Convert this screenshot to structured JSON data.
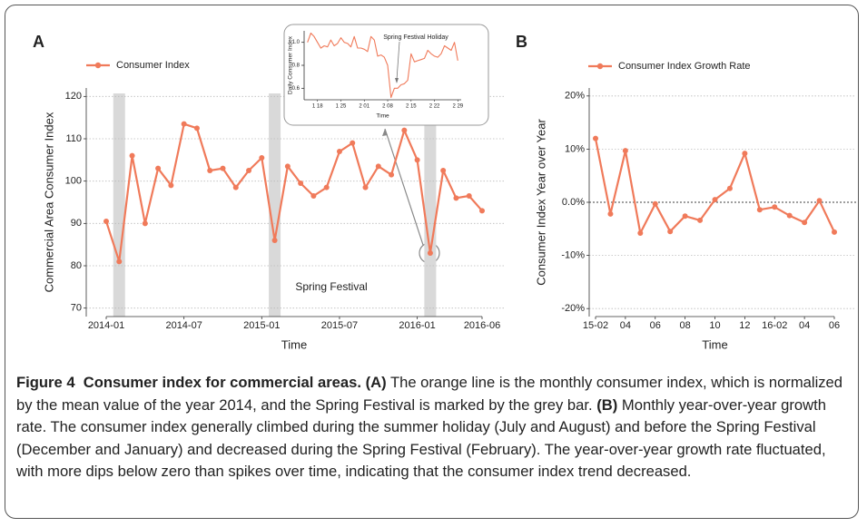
{
  "chart_data": [
    {
      "type": "line",
      "panel": "A",
      "ylabel": "Commercial Area Consumer Index",
      "xlabel": "Time",
      "annotation": "Spring Festival",
      "categories": [
        "2014-01",
        null,
        null,
        null,
        null,
        null,
        "2014-07",
        null,
        null,
        null,
        null,
        null,
        "2015-01",
        null,
        null,
        null,
        null,
        null,
        "2015-07",
        null,
        null,
        null,
        null,
        null,
        "2016-01",
        null,
        null,
        null,
        null,
        "2016-06"
      ],
      "series": [
        {
          "name": "Consumer Index",
          "color": "#f07a5a",
          "values": [
            90.5,
            81,
            106,
            90,
            103,
            99,
            113.5,
            112.5,
            102.5,
            103,
            98.5,
            102.5,
            105.5,
            86,
            103.5,
            99.5,
            96.5,
            98.5,
            107,
            109,
            98.5,
            103.5,
            101.5,
            112,
            105,
            83,
            102.5,
            96,
            96.5,
            93
          ]
        }
      ],
      "shaded_indices": [
        1,
        13,
        25
      ],
      "ylim": [
        68,
        122
      ],
      "yticks": [
        70,
        80,
        90,
        100,
        110,
        120
      ],
      "grid": true,
      "legend": "top-left",
      "markers": true
    },
    {
      "type": "line",
      "panel": "B",
      "ylabel": "Consumer Index Year over Year",
      "xlabel": "Time",
      "categories": [
        "15-02",
        null,
        "04",
        null,
        "06",
        null,
        "08",
        null,
        "10",
        null,
        "12",
        null,
        "16-02",
        null,
        "04",
        null,
        "06"
      ],
      "series": [
        {
          "name": "Consumer Index Growth Rate",
          "color": "#f07a5a",
          "values": [
            12.0,
            -2.2,
            9.7,
            -5.8,
            -0.3,
            -5.5,
            -2.6,
            -3.4,
            0.5,
            2.6,
            9.2,
            -1.4,
            -0.9,
            -2.5,
            -3.8,
            0.3,
            -5.6
          ]
        }
      ],
      "ylim": [
        -21.5,
        21.5
      ],
      "yticks": [
        {
          "value": -20,
          "label": "-20%"
        },
        {
          "value": -10,
          "label": "-10%"
        },
        {
          "value": 0,
          "label": "0.0%"
        },
        {
          "value": 10,
          "label": "10%"
        },
        {
          "value": 20,
          "label": "20%"
        }
      ],
      "grid": true,
      "zero_line": true,
      "legend": "top-left",
      "markers": true
    },
    {
      "type": "line",
      "ylabel": "Daily Consumer Index",
      "xlabel": "Time",
      "annotation": "Spring Festival Holiday",
      "x": [
        15,
        16,
        17,
        18,
        19,
        20,
        21,
        22,
        23,
        24,
        25,
        26,
        27,
        28,
        29,
        30,
        31,
        32,
        33,
        34,
        35,
        36,
        37,
        38,
        39,
        40,
        41,
        42,
        43,
        44,
        45,
        46,
        47,
        48,
        49,
        50,
        51,
        52,
        53,
        54,
        55,
        56,
        57,
        58,
        59,
        60
      ],
      "series": [
        {
          "color": "#f07a5a",
          "values": [
            1.0,
            1.08,
            1.05,
            1.0,
            0.95,
            0.97,
            0.96,
            1.02,
            0.97,
            0.99,
            1.04,
            1.0,
            0.99,
            0.96,
            1.05,
            0.95,
            0.95,
            0.94,
            0.92,
            1.05,
            1.02,
            0.88,
            0.89,
            0.87,
            0.8,
            0.52,
            0.6,
            0.6,
            0.63,
            0.64,
            0.67,
            0.9,
            0.83,
            0.84,
            0.85,
            0.86,
            0.93,
            0.9,
            0.88,
            0.87,
            0.9,
            0.97,
            0.95,
            0.93,
            1.0,
            0.84
          ]
        }
      ],
      "xlim": [
        14,
        61
      ],
      "xticks": [
        {
          "value": 18,
          "label": "1 18"
        },
        {
          "value": 25,
          "label": "1 25"
        },
        {
          "value": 32,
          "label": "2 01"
        },
        {
          "value": 39,
          "label": "2 08"
        },
        {
          "value": 46,
          "label": "2 15"
        },
        {
          "value": 53,
          "label": "2 22"
        },
        {
          "value": 60,
          "label": "2 29"
        }
      ],
      "ylim": [
        0.5,
        1.1
      ],
      "yticks": [
        0.6,
        0.8,
        {
          "value": 1,
          "label": "1.0"
        }
      ],
      "grid": false,
      "markers": false
    }
  ],
  "caption": {
    "label": "Figure 4",
    "title": "Consumer index for commercial areas.",
    "a_label": "(A)",
    "a_text": "The orange line is the monthly consumer index, which is normalized by the mean value of the year 2014, and the Spring Festival is marked by the grey bar.",
    "b_label": "(B)",
    "b_text": "Monthly year-over-year growth rate. The consumer index generally climbed during the summer holiday (July and August) and before the Spring Festival (December and January) and decreased during the Spring Festival (February). The year-over-year growth rate fluctuated, with more dips below zero than spikes over time, indicating that the consumer index trend decreased."
  }
}
